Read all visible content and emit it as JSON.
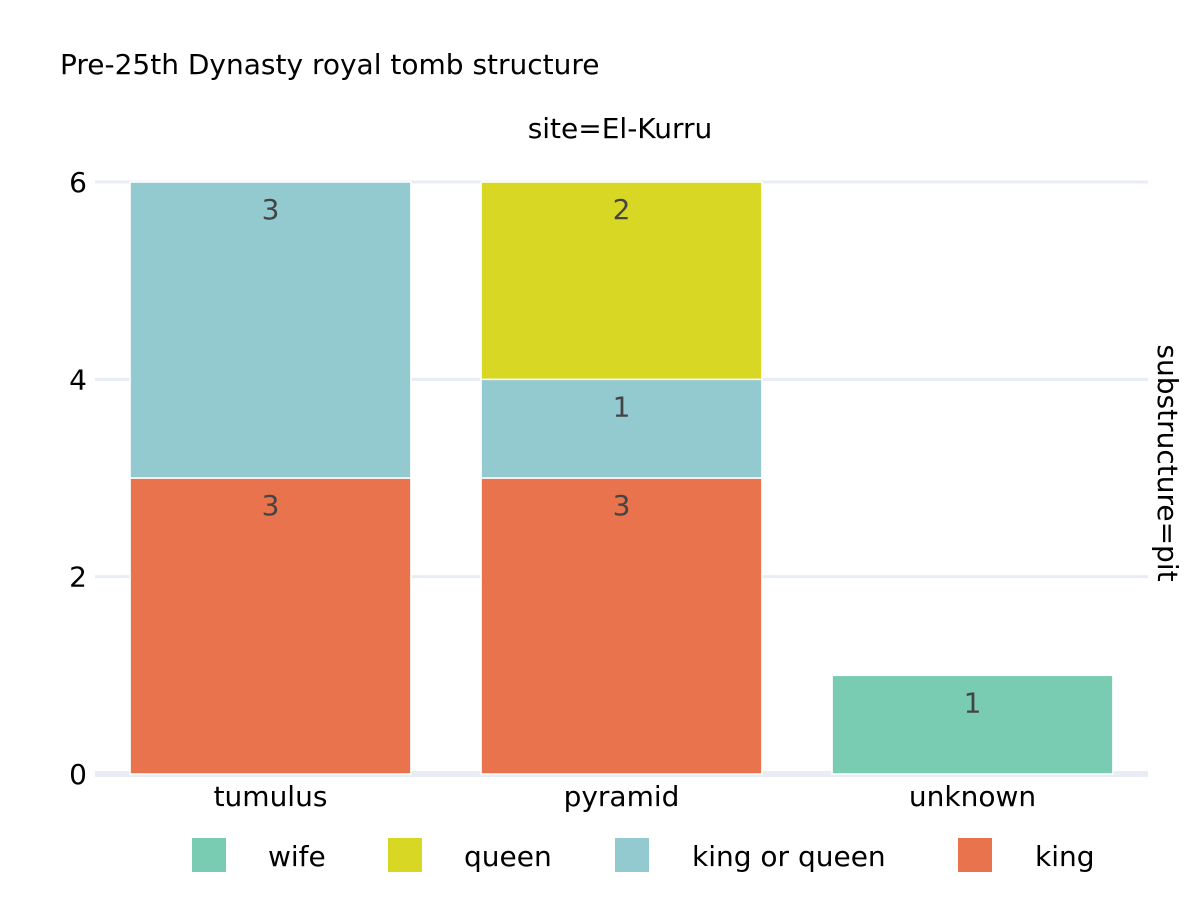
{
  "chart_data": {
    "type": "bar",
    "title": "Pre-25th Dynasty royal tomb structure",
    "facet_col_label": "site=El-Kurru",
    "facet_row_label": "substructure=pit",
    "categories": [
      "tumulus",
      "pyramid",
      "unknown"
    ],
    "ylim": [
      0,
      6
    ],
    "yticks": [
      "0",
      "2",
      "4",
      "6"
    ],
    "grid": true,
    "legend_position": "bottom",
    "series": [
      {
        "name": "king",
        "color": "#e8734d",
        "values": [
          3,
          3,
          null
        ]
      },
      {
        "name": "king or queen",
        "color": "#93cad0",
        "values": [
          3,
          1,
          null
        ]
      },
      {
        "name": "queen",
        "color": "#d8d824",
        "values": [
          null,
          2,
          null
        ]
      },
      {
        "name": "wife",
        "color": "#79cbb2",
        "values": [
          null,
          null,
          1
        ]
      }
    ],
    "legend_order": [
      "wife",
      "queen",
      "king or queen",
      "king"
    ]
  }
}
